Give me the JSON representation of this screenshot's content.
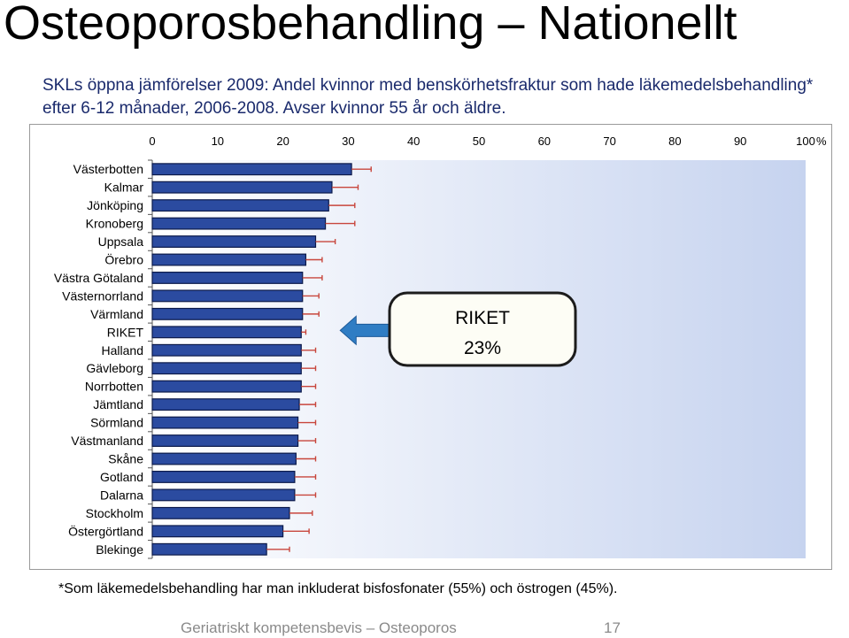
{
  "slide": {
    "title": "Osteoporosbehandling – Nationellt",
    "subtitle": "SKLs öppna jämförelser 2009: Andel kvinnor med benskörhetsfraktur som hade läkemedelsbehandling* efter 6-12 månader, 2006-2008. Avser kvinnor 55 år och äldre.",
    "footnote": "*Som läkemedelsbehandling har man inkluderat bisfosfonater (55%) och östrogen (45%).",
    "footer": {
      "text": "Geriatriskt kompetensbevis – Osteoporos",
      "page": "17"
    }
  },
  "chart_data": {
    "type": "bar",
    "orientation": "horizontal",
    "categories": [
      "Västerbotten",
      "Kalmar",
      "Jönköping",
      "Kronoberg",
      "Uppsala",
      "Örebro",
      "Västra Götaland",
      "Västernorrland",
      "Värmland",
      "RIKET",
      "Halland",
      "Gävleborg",
      "Norrbotten",
      "Jämtland",
      "Sörmland",
      "Västmanland",
      "Skåne",
      "Gotland",
      "Dalarna",
      "Stockholm",
      "Östergörtland",
      "Blekinge"
    ],
    "values": [
      30.5,
      27.5,
      27,
      26.5,
      25,
      23.5,
      23,
      23,
      23,
      22.8,
      22.8,
      22.8,
      22.8,
      22.5,
      22.3,
      22.3,
      22,
      21.8,
      21.8,
      21,
      20,
      17.5
    ],
    "error_high": [
      33.5,
      31.5,
      31,
      31,
      28,
      26,
      26,
      25.5,
      25.5,
      23.5,
      25,
      25,
      25,
      25,
      25,
      25,
      25,
      25,
      25,
      24.5,
      24,
      21
    ],
    "xlim": [
      0,
      100
    ],
    "xticks": [
      0,
      10,
      20,
      30,
      40,
      50,
      60,
      70,
      80,
      90,
      100
    ],
    "x_unit": "%",
    "grid": false,
    "callout": {
      "line1": "RIKET",
      "line2": "23%",
      "points_to": "RIKET"
    },
    "colors": {
      "bar_fill": "#2b4ba0",
      "bar_stroke": "#0c1a4a",
      "error_bar": "#c8463c",
      "background_left": "#ffffff",
      "background_right": "#c6d3ef",
      "arrow": "#2f7dc4",
      "callout_border": "#1c1c1c",
      "callout_fill": "#fdfdf5"
    }
  }
}
